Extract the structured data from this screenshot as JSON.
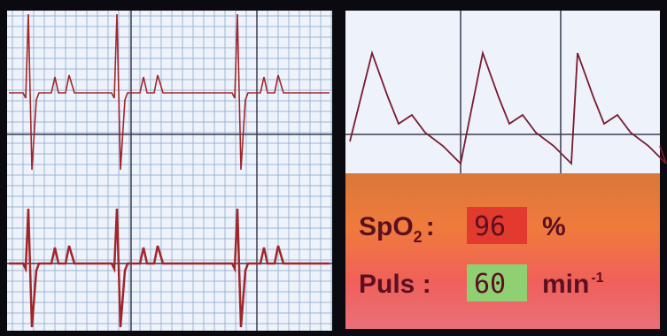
{
  "spo2": {
    "label": "SpO",
    "subscript": "2",
    "separator": ":",
    "value": 96,
    "unit": "%"
  },
  "pulse": {
    "label": "Puls :",
    "value": 60,
    "unit": "min",
    "unit_superscript": "-1"
  }
}
